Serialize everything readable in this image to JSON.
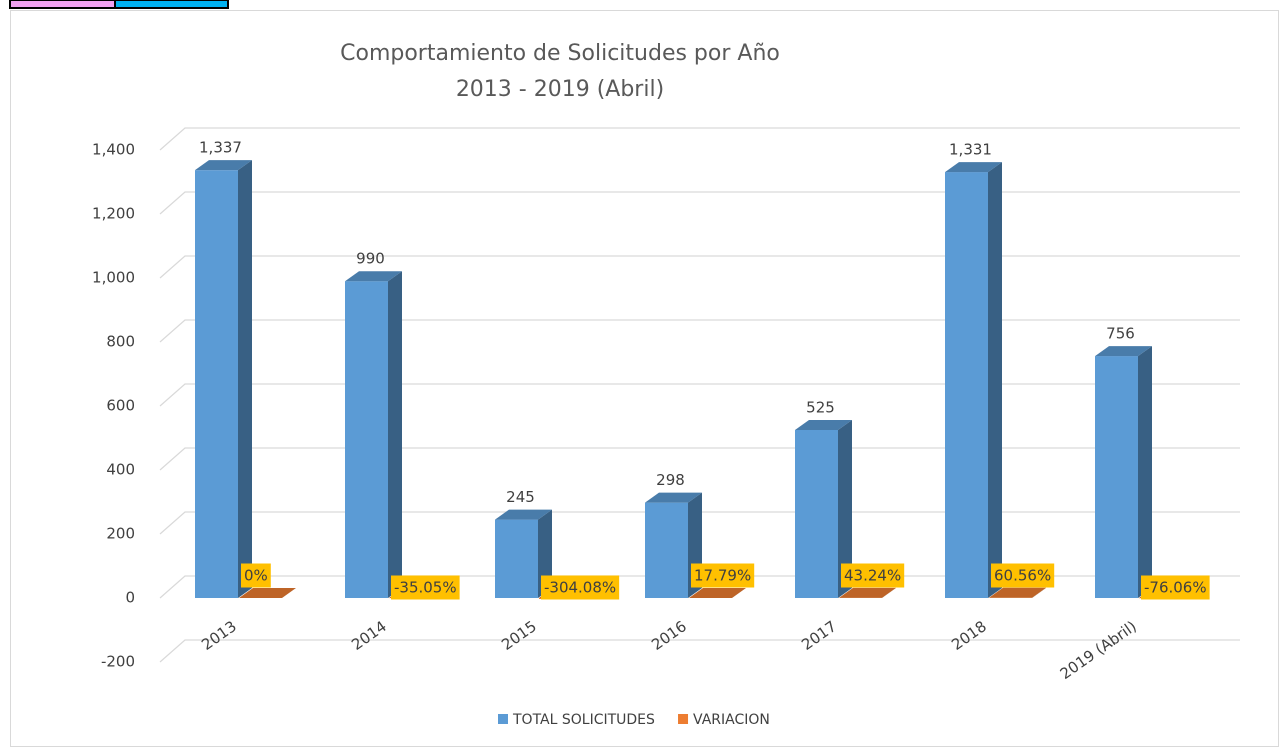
{
  "chart_data": {
    "type": "bar3d",
    "title": "Comportamiento de Solicitudes por Año",
    "subtitle": "2013 - 2019 (Abril)",
    "categories": [
      "2013",
      "2014",
      "2015",
      "2016",
      "2017",
      "2018",
      "2019 (Abril)"
    ],
    "series": [
      {
        "name": "TOTAL SOLICITUDES",
        "color": "#5b9bd5",
        "values": [
          1337,
          990,
          245,
          298,
          525,
          1331,
          756
        ],
        "value_labels": [
          "1,337",
          "990",
          "245",
          "298",
          "525",
          "1,331",
          "756"
        ]
      },
      {
        "name": "VARIACION",
        "color": "#ed7d31",
        "values": [
          0,
          -0.3505,
          -3.0408,
          0.1779,
          0.4324,
          0.6056,
          -0.7606
        ],
        "value_labels": [
          "0%",
          "-35.05%",
          "-304.08%",
          "17.79%",
          "43.24%",
          "60.56%",
          "-76.06%"
        ]
      }
    ],
    "ylim": [
      -200,
      1400
    ],
    "yticks": [
      -200,
      0,
      200,
      400,
      600,
      800,
      {
        "value": 1000,
        "label": "1,000"
      },
      {
        "value": 1200,
        "label": "1,200"
      },
      {
        "value": 1400,
        "label": "1,400"
      }
    ],
    "grid": true,
    "legend": "bottom"
  }
}
